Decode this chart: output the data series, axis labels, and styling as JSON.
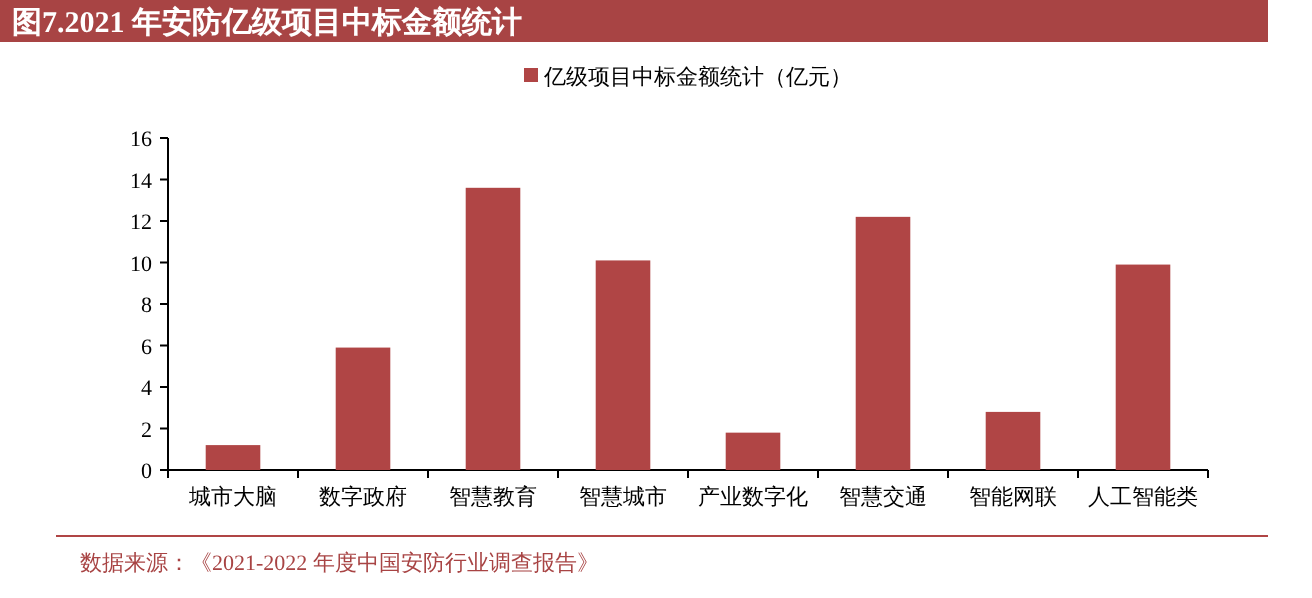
{
  "chart_data": {
    "type": "bar",
    "title": "图7.2021 年安防亿级项目中标金额统计",
    "categories": [
      "城市大脑",
      "数字政府",
      "智慧教育",
      "智慧城市",
      "产业数字化",
      "智慧交通",
      "智能网联",
      "人工智能类"
    ],
    "series": [
      {
        "name": "亿级项目中标金额统计（亿元）",
        "color": "#b04545",
        "values": [
          1.2,
          5.9,
          13.6,
          10.1,
          1.8,
          12.2,
          2.8,
          9.9
        ]
      }
    ],
    "ylim": [
      0,
      16
    ],
    "yticks": [
      0,
      2,
      4,
      6,
      8,
      10,
      12,
      14,
      16
    ],
    "grid": false,
    "legend": "top",
    "annotations": [
      "数据来源：《2021-2022 年度中国安防行业调查报告》"
    ]
  }
}
